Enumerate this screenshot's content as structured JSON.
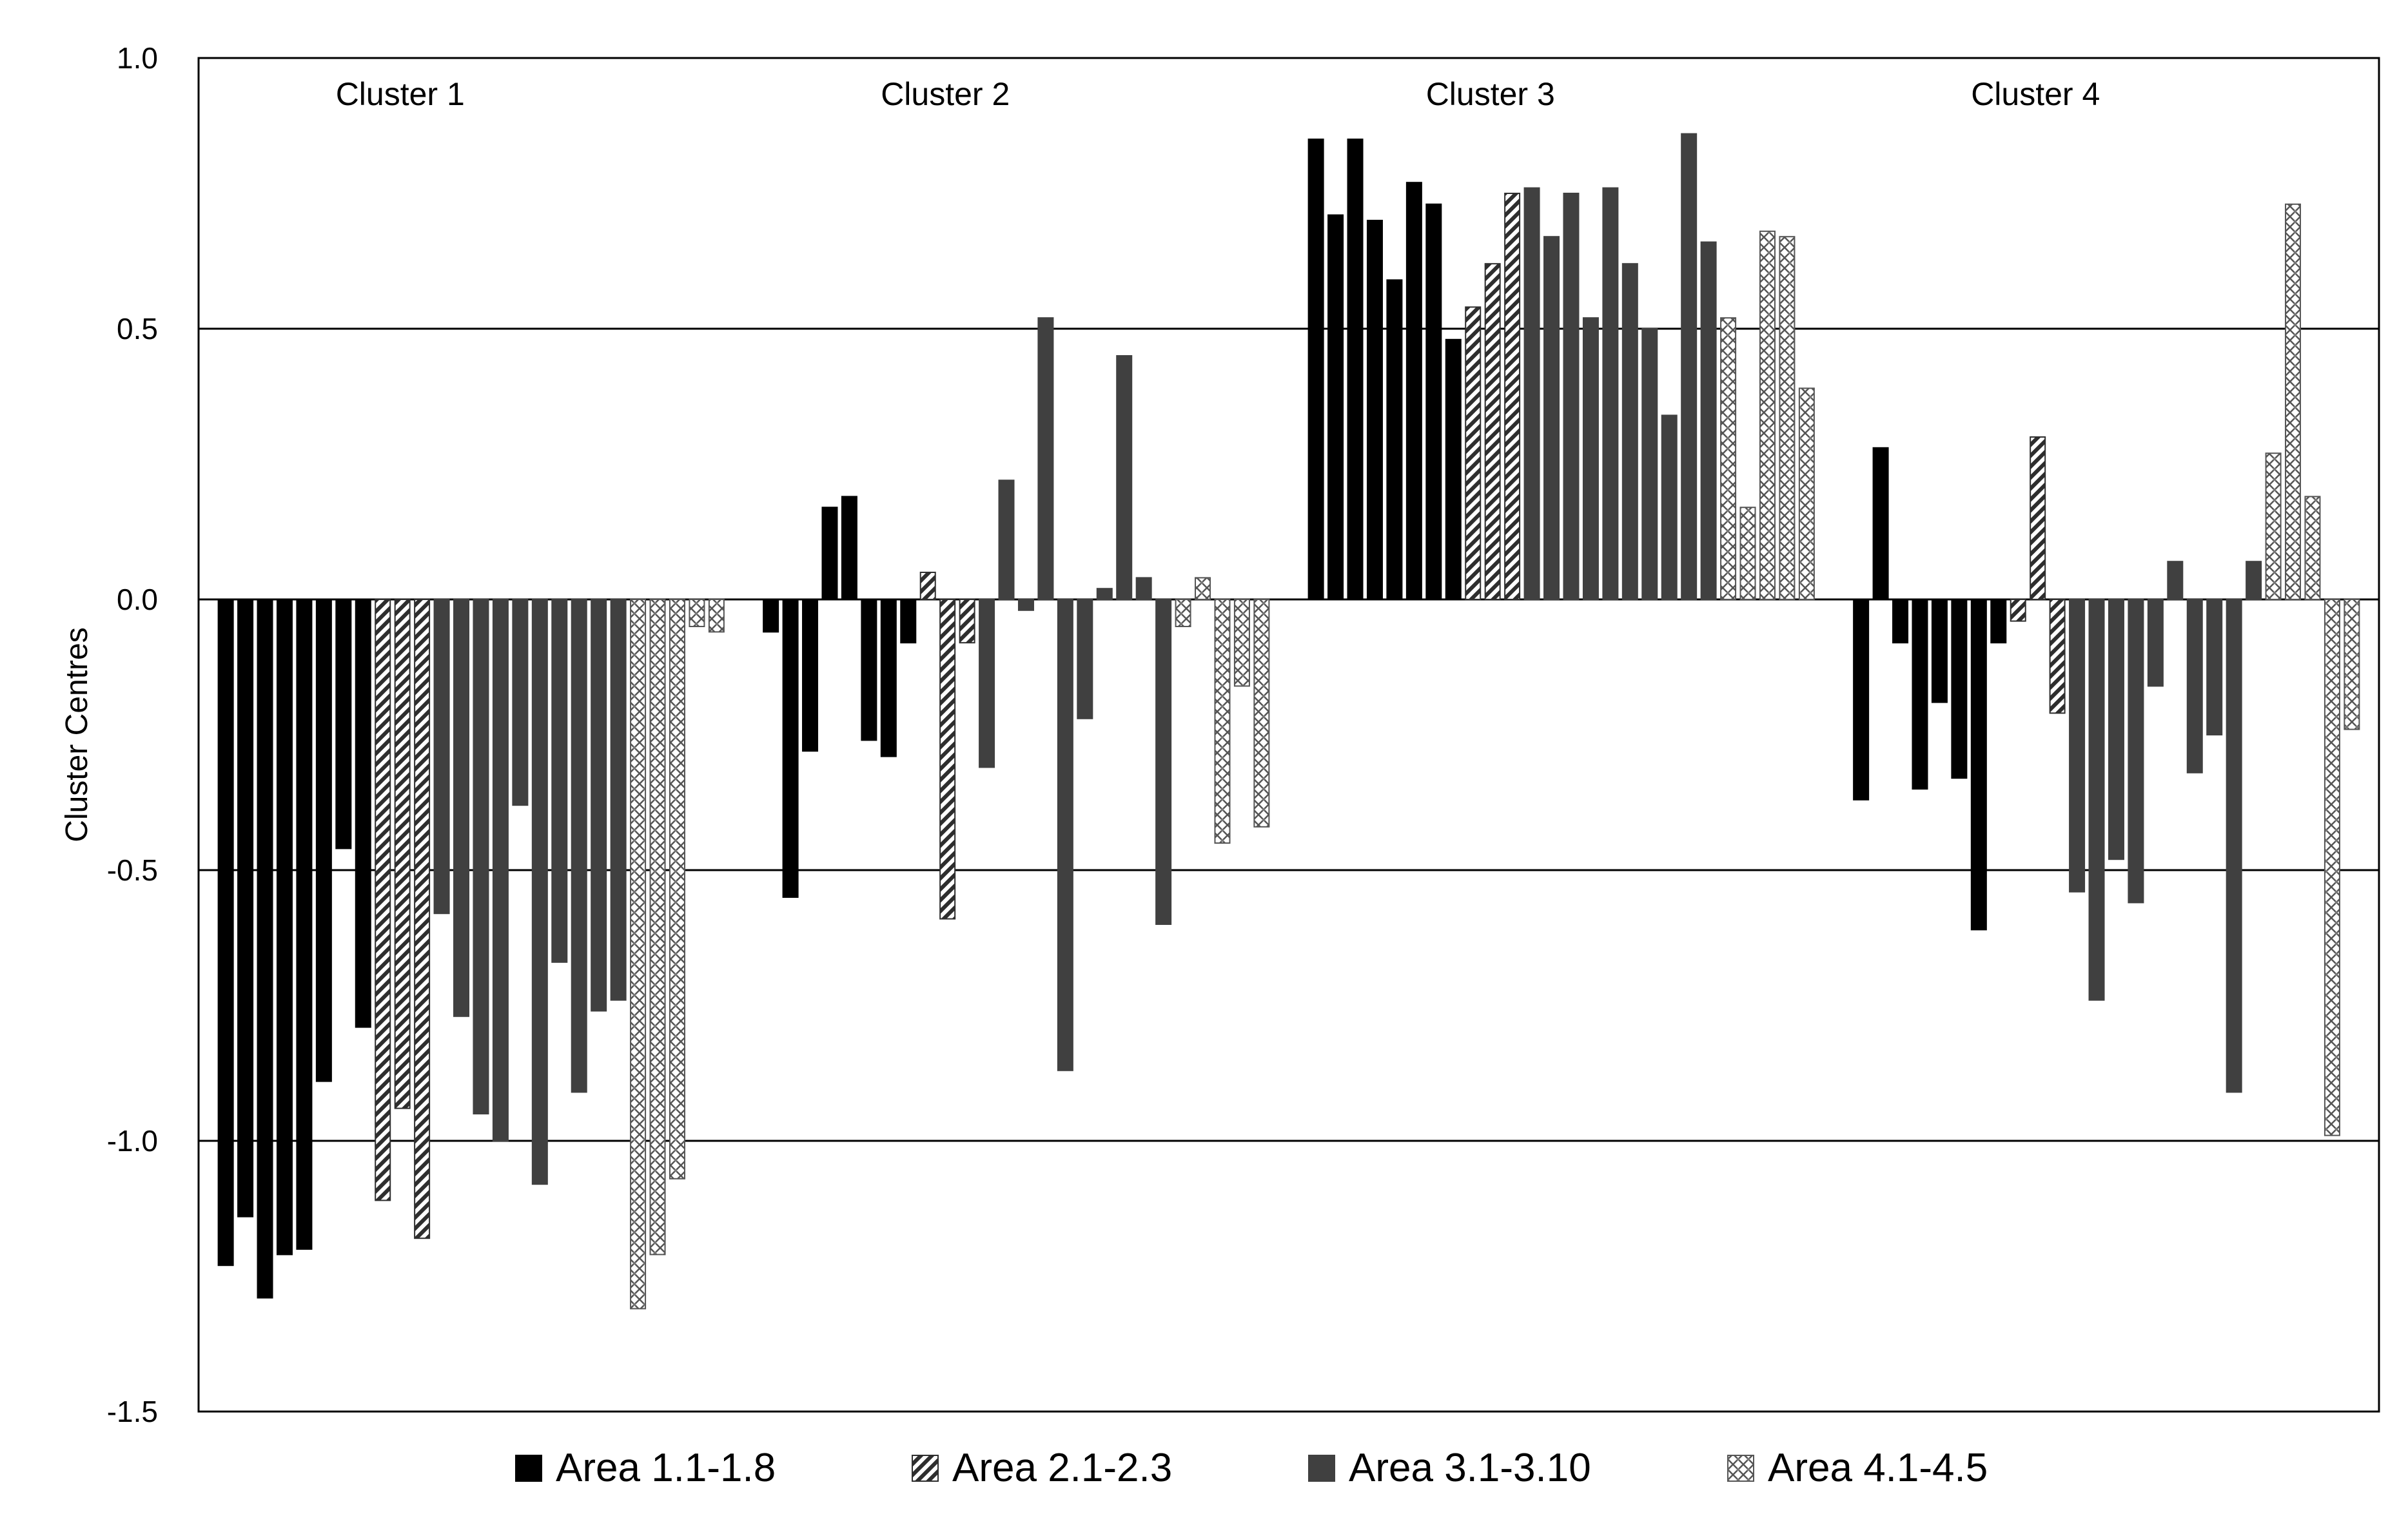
{
  "chart_data": {
    "type": "bar",
    "ylabel": "Cluster Centres",
    "ylim": [
      -1.5,
      1.0
    ],
    "yticks": [
      1.0,
      0.5,
      0.0,
      -0.5,
      -1.0,
      -1.5
    ],
    "ytick_labels": [
      "1.0",
      "0.5",
      "0.0",
      "-0.5",
      "-1.0",
      "-1.5"
    ],
    "grid": "horizontal",
    "legend_position": "bottom",
    "colors": {
      "Area 1.1-1.8": "#000000",
      "Area 2.1-2.3": "#3a3a3a",
      "Area 3.1-3.10": "#404040",
      "Area 4.1-4.5": "#6a6a6a"
    },
    "groups": [
      {
        "label": "Cluster 1",
        "series": [
          {
            "name": "Area 1.1-1.8",
            "values": [
              -1.23,
              -1.14,
              -1.29,
              -1.21,
              -1.2,
              -0.89,
              -0.46,
              -0.79
            ]
          },
          {
            "name": "Area 2.1-2.3",
            "values": [
              -1.11,
              -0.94,
              -1.18
            ]
          },
          {
            "name": "Area 3.1-3.10",
            "values": [
              -0.58,
              -0.77,
              -0.95,
              -1.0,
              -0.38,
              -1.08,
              -0.67,
              -0.91,
              -0.76,
              -0.74
            ]
          },
          {
            "name": "Area 4.1-4.5",
            "values": [
              -1.31,
              -1.21,
              -1.07,
              -0.05,
              -0.06
            ]
          }
        ]
      },
      {
        "label": "Cluster 2",
        "series": [
          {
            "name": "Area 1.1-1.8",
            "values": [
              -0.06,
              -0.55,
              -0.28,
              0.17,
              0.19,
              -0.26,
              -0.29,
              -0.08
            ]
          },
          {
            "name": "Area 2.1-2.3",
            "values": [
              0.05,
              -0.59,
              -0.08
            ]
          },
          {
            "name": "Area 3.1-3.10",
            "values": [
              -0.31,
              0.22,
              -0.02,
              0.52,
              -0.87,
              -0.22,
              0.02,
              0.45,
              0.04,
              -0.6
            ]
          },
          {
            "name": "Area 4.1-4.5",
            "values": [
              -0.05,
              0.04,
              -0.45,
              -0.16,
              -0.42
            ]
          }
        ]
      },
      {
        "label": "Cluster 3",
        "series": [
          {
            "name": "Area 1.1-1.8",
            "values": [
              0.85,
              0.71,
              0.85,
              0.7,
              0.59,
              0.77,
              0.73,
              0.48
            ]
          },
          {
            "name": "Area 2.1-2.3",
            "values": [
              0.54,
              0.62,
              0.75
            ]
          },
          {
            "name": "Area 3.1-3.10",
            "values": [
              0.76,
              0.67,
              0.75,
              0.52,
              0.76,
              0.62,
              0.5,
              0.34,
              0.86,
              0.66
            ]
          },
          {
            "name": "Area 4.1-4.5",
            "values": [
              0.52,
              0.17,
              0.68,
              0.67,
              0.39
            ]
          }
        ]
      },
      {
        "label": "Cluster 4",
        "series": [
          {
            "name": "Area 1.1-1.8",
            "values": [
              -0.37,
              0.28,
              -0.08,
              -0.35,
              -0.19,
              -0.33,
              -0.61,
              -0.08
            ]
          },
          {
            "name": "Area 2.1-2.3",
            "values": [
              -0.04,
              0.3,
              -0.21
            ]
          },
          {
            "name": "Area 3.1-3.10",
            "values": [
              -0.54,
              -0.74,
              -0.48,
              -0.56,
              -0.16,
              0.07,
              -0.32,
              -0.25,
              -0.91,
              0.07
            ]
          },
          {
            "name": "Area 4.1-4.5",
            "values": [
              0.27,
              0.73,
              0.19,
              -0.99,
              -0.24
            ]
          }
        ]
      }
    ]
  }
}
